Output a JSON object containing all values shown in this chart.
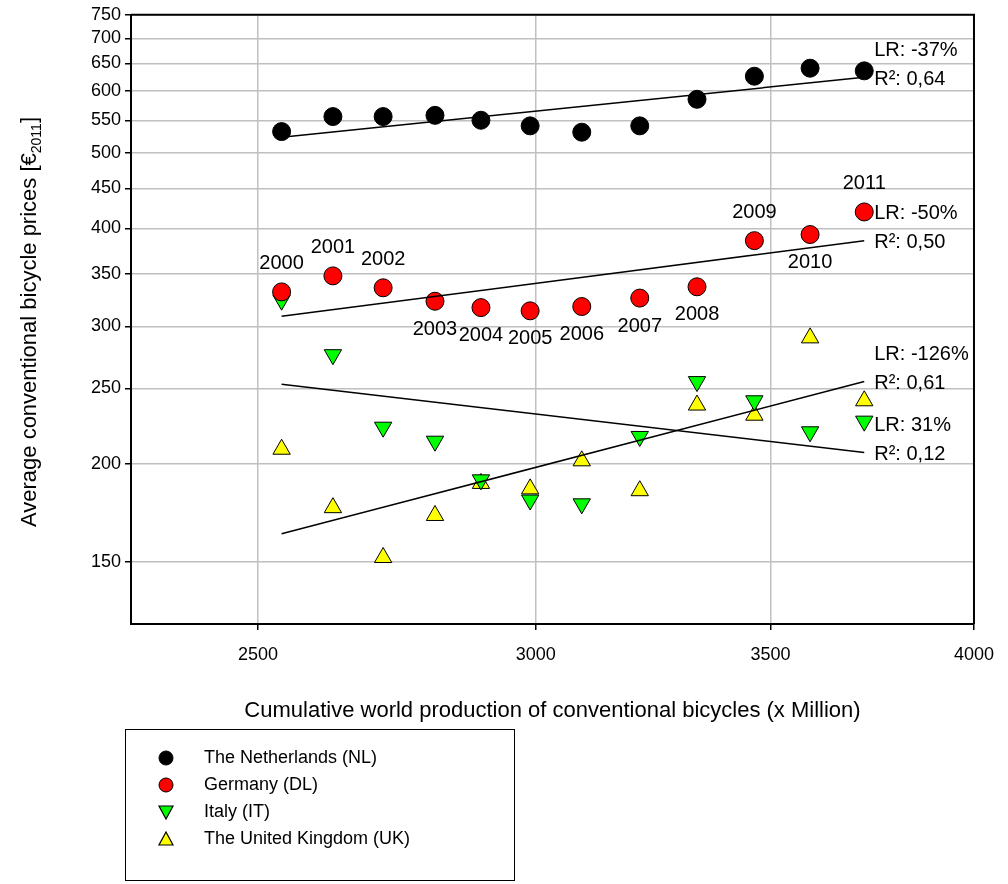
{
  "chart_data": {
    "type": "scatter",
    "xlabel": "Cumulative world production of conventional bicycles (x Million)",
    "ylabel": "Average conventional bicycle prices [€$_{2011}$]",
    "x": [
      2539,
      2626,
      2714,
      2808,
      2894,
      2989,
      3092,
      3212,
      3335,
      3463,
      3592,
      3722
    ],
    "series": [
      {
        "name": "The Netherlands (NL)",
        "color": "#000000",
        "marker": "circle",
        "values": [
          532,
          556,
          556,
          558,
          550,
          541,
          531,
          541,
          585,
          626,
          641,
          636
        ]
      },
      {
        "name": "Germany (DL)",
        "color": "#ff0000",
        "marker": "circle",
        "values": [
          332,
          348,
          336,
          323,
          317,
          314,
          318,
          326,
          337,
          386,
          393,
          420
        ]
      },
      {
        "name": "Italy (IT)",
        "color": "#00ff00",
        "marker": "triangle-down",
        "values": [
          324,
          276,
          223,
          214,
          191,
          180,
          178,
          217,
          255,
          241,
          220,
          227
        ]
      },
      {
        "name": "The United Kingdom (UK)",
        "color": "#ffff00",
        "marker": "triangle",
        "values": [
          209,
          176,
          152,
          172,
          189,
          186,
          202,
          185,
          238,
          231,
          290,
          241
        ]
      },
      {
        "type": "line",
        "color": "#000000",
        "marker": "none",
        "values": [
          523,
          null,
          null,
          null,
          null,
          null,
          null,
          null,
          null,
          null,
          null,
          624
        ]
      },
      {
        "type": "line",
        "color": "#000000",
        "marker": "none",
        "values": [
          309,
          null,
          null,
          null,
          null,
          null,
          null,
          null,
          null,
          null,
          null,
          386
        ]
      },
      {
        "type": "line",
        "color": "#000000",
        "marker": "none",
        "values": [
          163,
          null,
          null,
          null,
          null,
          null,
          null,
          null,
          null,
          null,
          null,
          255
        ]
      },
      {
        "type": "line",
        "color": "#000000",
        "marker": "none",
        "values": [
          253,
          null,
          null,
          null,
          null,
          null,
          null,
          null,
          null,
          null,
          null,
          207
        ]
      }
    ],
    "xlim": [
      2300,
      4000
    ],
    "xticks": [
      2500,
      3000,
      3500,
      4000
    ],
    "ylim": [
      125,
      750
    ],
    "yticks": [
      150,
      200,
      250,
      300,
      350,
      400,
      450,
      500,
      550,
      600,
      650,
      700,
      750
    ],
    "log": "xy",
    "grid": true,
    "legend": "bottom left",
    "annotations": [
      {
        "text": "2000",
        "x": 2539,
        "y": 332
      },
      {
        "text": "2001",
        "x": 2626,
        "y": 348
      },
      {
        "text": "2002",
        "x": 2714,
        "y": 336
      },
      {
        "text": "2003",
        "x": 2808,
        "y": 323
      },
      {
        "text": "2004",
        "x": 2894,
        "y": 317
      },
      {
        "text": "2005",
        "x": 2989,
        "y": 314
      },
      {
        "text": "2006",
        "x": 3092,
        "y": 318
      },
      {
        "text": "2007",
        "x": 3212,
        "y": 326
      },
      {
        "text": "2008",
        "x": 3335,
        "y": 337
      },
      {
        "text": "2009",
        "x": 3463,
        "y": 386
      },
      {
        "text": "2010",
        "x": 3592,
        "y": 393
      },
      {
        "text": "2011",
        "x": 3722,
        "y": 420
      },
      {
        "text": "LR: -37%",
        "x": 3722,
        "y": 624
      },
      {
        "text": "R²: 0,64",
        "x": 3722,
        "y": 624
      },
      {
        "text": "LR: -50%",
        "x": 3722,
        "y": 386
      },
      {
        "text": "R²: 0,50",
        "x": 3722,
        "y": 386
      },
      {
        "text": "LR: -126%",
        "x": 3722,
        "y": 255
      },
      {
        "text": "R²: 0,61",
        "x": 3722,
        "y": 255
      },
      {
        "text": "LR: 31%",
        "x": 3722,
        "y": 207
      },
      {
        "text": "R²: 0,12",
        "x": 3722,
        "y": 207
      }
    ]
  }
}
